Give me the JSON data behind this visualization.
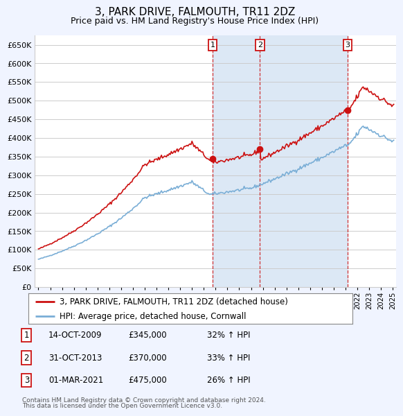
{
  "title": "3, PARK DRIVE, FALMOUTH, TR11 2DZ",
  "subtitle": "Price paid vs. HM Land Registry's House Price Index (HPI)",
  "ylim": [
    0,
    675000
  ],
  "yticks": [
    0,
    50000,
    100000,
    150000,
    200000,
    250000,
    300000,
    350000,
    400000,
    450000,
    500000,
    550000,
    600000,
    650000
  ],
  "sale_prices": [
    345000,
    370000,
    475000
  ],
  "sale_labels": [
    "1",
    "2",
    "3"
  ],
  "sale_date_strs": [
    "14-OCT-2009",
    "31-OCT-2013",
    "01-MAR-2021"
  ],
  "sale_price_strs": [
    "£345,000",
    "£370,000",
    "£475,000"
  ],
  "sale_pct": [
    "32% ↑ HPI",
    "33% ↑ HPI",
    "26% ↑ HPI"
  ],
  "legend_red": "3, PARK DRIVE, FALMOUTH, TR11 2DZ (detached house)",
  "legend_blue": "HPI: Average price, detached house, Cornwall",
  "footnote1": "Contains HM Land Registry data © Crown copyright and database right 2024.",
  "footnote2": "This data is licensed under the Open Government Licence v3.0.",
  "background_color": "#f0f4ff",
  "plot_bg": "#ffffff",
  "shade_color": "#dce8f5",
  "red_color": "#cc1111",
  "blue_color": "#7aaed6",
  "grid_color": "#cccccc",
  "title_fontsize": 11,
  "subtitle_fontsize": 9,
  "tick_fontsize": 8,
  "legend_fontsize": 8.5
}
